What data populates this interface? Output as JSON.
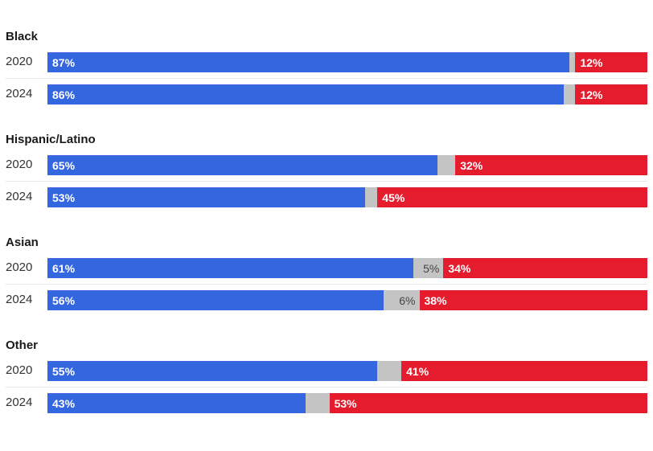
{
  "colors": {
    "dem": "#3466e0",
    "other": "#c4c4c4",
    "rep": "#e51b2e"
  },
  "chart_data": {
    "type": "bar",
    "orientation": "horizontal-stacked-100",
    "groups": [
      {
        "label": "Black",
        "rows": [
          {
            "year": "2020",
            "dem": 87,
            "other": 1,
            "rep": 12,
            "dem_label": "87%",
            "other_label": "",
            "rep_label": "12%"
          },
          {
            "year": "2024",
            "dem": 86,
            "other": 2,
            "rep": 12,
            "dem_label": "86%",
            "other_label": "",
            "rep_label": "12%"
          }
        ]
      },
      {
        "label": "Hispanic/Latino",
        "rows": [
          {
            "year": "2020",
            "dem": 65,
            "other": 3,
            "rep": 32,
            "dem_label": "65%",
            "other_label": "",
            "rep_label": "32%"
          },
          {
            "year": "2024",
            "dem": 53,
            "other": 2,
            "rep": 45,
            "dem_label": "53%",
            "other_label": "",
            "rep_label": "45%"
          }
        ]
      },
      {
        "label": "Asian",
        "rows": [
          {
            "year": "2020",
            "dem": 61,
            "other": 5,
            "rep": 34,
            "dem_label": "61%",
            "other_label": "5%",
            "rep_label": "34%"
          },
          {
            "year": "2024",
            "dem": 56,
            "other": 6,
            "rep": 38,
            "dem_label": "56%",
            "other_label": "6%",
            "rep_label": "38%"
          }
        ]
      },
      {
        "label": "Other",
        "rows": [
          {
            "year": "2020",
            "dem": 55,
            "other": 4,
            "rep": 41,
            "dem_label": "55%",
            "other_label": "",
            "rep_label": "41%"
          },
          {
            "year": "2024",
            "dem": 43,
            "other": 4,
            "rep": 53,
            "dem_label": "43%",
            "other_label": "",
            "rep_label": "53%"
          }
        ]
      }
    ]
  }
}
